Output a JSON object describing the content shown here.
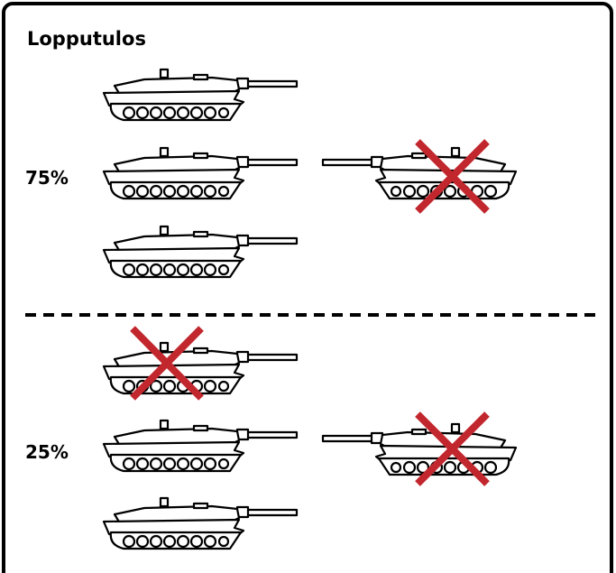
{
  "title": "Lopputulos",
  "scenarios": [
    {
      "label": "75%"
    },
    {
      "label": "25%"
    }
  ]
}
